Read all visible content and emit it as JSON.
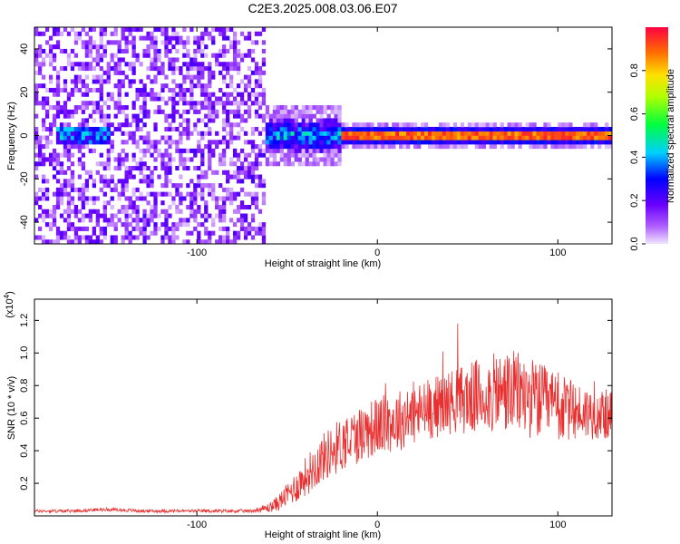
{
  "figure": {
    "title": "C2E3.2025.008.03.06.E07"
  },
  "chart_data": [
    {
      "type": "heatmap",
      "title": "C2E3.2025.008.03.06.E07",
      "xlabel": "Height of straight line (km)",
      "ylabel": "Frequency (Hz)",
      "xlim": [
        -190,
        130
      ],
      "ylim": [
        -50,
        50
      ],
      "xticks": [
        -100,
        0,
        100
      ],
      "yticks": [
        -40,
        -20,
        0,
        20,
        40
      ],
      "colorbar": {
        "label": "Normalized spectral amplitude",
        "range": [
          0.0,
          1.0
        ],
        "ticks": [
          0.0,
          0.2,
          0.4,
          0.6,
          0.8
        ],
        "colormap": "rainbow (purple-blue-cyan-green-yellow-red)"
      },
      "regions": [
        {
          "x_range": [
            -190,
            -62
          ],
          "description": "broadband low amplitude noise across all frequencies",
          "amplitude": 0.05
        },
        {
          "x_range": [
            -62,
            -20
          ],
          "description": "energy concentrated near 0 Hz, spread roughly ±8 Hz",
          "center_frequency": 0,
          "amplitude": 0.4
        },
        {
          "x_range": [
            -20,
            130
          ],
          "description": "narrow band near 0 Hz, peak normalized amplitude",
          "center_frequency": 0,
          "amplitude": 0.9
        }
      ]
    },
    {
      "type": "line",
      "xlabel": "Height of straight line (km)",
      "ylabel": "SNR (10 * v/v)",
      "yscale_label": "(x10",
      "yscale_exp": "4",
      "yscale_close": ")",
      "xlim": [
        -190,
        130
      ],
      "ylim": [
        0.0,
        1.33
      ],
      "xticks": [
        -100,
        0,
        100
      ],
      "yticks": [
        0.2,
        0.4,
        0.6,
        0.8,
        1.0,
        1.2
      ],
      "series": [
        {
          "color": "#e83030",
          "x": [
            -190,
            -170,
            -150,
            -130,
            -110,
            -90,
            -70,
            -60,
            -55,
            -50,
            -45,
            -40,
            -35,
            -30,
            -25,
            -20,
            -15,
            -10,
            -5,
            0,
            10,
            20,
            30,
            40,
            50,
            60,
            70,
            80,
            90,
            100,
            110,
            120,
            130
          ],
          "y": [
            0.03,
            0.03,
            0.04,
            0.03,
            0.03,
            0.03,
            0.03,
            0.05,
            0.08,
            0.13,
            0.18,
            0.24,
            0.3,
            0.36,
            0.4,
            0.44,
            0.47,
            0.5,
            0.53,
            0.55,
            0.58,
            0.62,
            0.66,
            0.7,
            0.72,
            0.74,
            0.76,
            0.75,
            0.7,
            0.66,
            0.64,
            0.63,
            0.62
          ],
          "noise": [
            0.01,
            0.01,
            0.01,
            0.01,
            0.01,
            0.01,
            0.01,
            0.03,
            0.05,
            0.07,
            0.1,
            0.12,
            0.14,
            0.15,
            0.16,
            0.17,
            0.17,
            0.18,
            0.18,
            0.18,
            0.19,
            0.19,
            0.19,
            0.2,
            0.22,
            0.24,
            0.26,
            0.26,
            0.24,
            0.22,
            0.18,
            0.16,
            0.15
          ]
        }
      ]
    }
  ]
}
